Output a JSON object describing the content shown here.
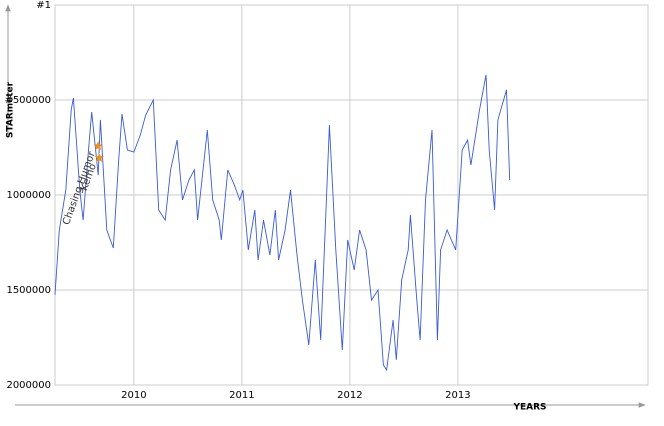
{
  "chart_data": {
    "type": "line",
    "y_label": "STARmeter",
    "x_label": "YEARS",
    "xlim": [
      2009.27,
      2014.76
    ],
    "xticks": [
      2010,
      2011,
      2012,
      2013
    ],
    "ylim": [
      2000000,
      1
    ],
    "yticks": [
      {
        "value": 1,
        "label": "#1"
      },
      {
        "value": 500000,
        "label": "#500000"
      },
      1000000,
      1500000,
      2000000
    ],
    "grid": true,
    "series": [
      {
        "color": "#3a5ad6",
        "x": [
          2009.27,
          2009.31,
          2009.37,
          2009.42,
          2009.44,
          2009.5,
          2009.53,
          2009.58,
          2009.61,
          2009.67,
          2009.69,
          2009.75,
          2009.81,
          2009.86,
          2009.89,
          2009.94,
          2010,
          2010.06,
          2010.11,
          2010.18,
          2010.23,
          2010.29,
          2010.34,
          2010.4,
          2010.45,
          2010.51,
          2010.56,
          2010.59,
          2010.65,
          2010.68,
          2010.73,
          2010.79,
          2010.81,
          2010.87,
          2010.93,
          2010.98,
          2011.01,
          2011.06,
          2011.12,
          2011.15,
          2011.2,
          2011.26,
          2011.31,
          2011.34,
          2011.4,
          2011.45,
          2011.51,
          2011.56,
          2011.62,
          2011.68,
          2011.73,
          2011.79,
          2011.81,
          2011.87,
          2011.93,
          2011.98,
          2012.04,
          2012.09,
          2012.15,
          2012.2,
          2012.26,
          2012.31,
          2012.34,
          2012.4,
          2012.43,
          2012.48,
          2012.54,
          2012.56,
          2012.62,
          2012.65,
          2012.7,
          2012.76,
          2012.81,
          2012.84,
          2012.9,
          2012.98,
          2013.04,
          2013.09,
          2013.12,
          2013.2,
          2013.26,
          2013.29,
          2013.34,
          2013.37,
          2013.45,
          2013.48
        ],
        "values": [
          1526000,
          1184000,
          974000,
          553000,
          489000,
          974000,
          1132000,
          763000,
          563000,
          895000,
          605000,
          1184000,
          1279000,
          816000,
          574000,
          763000,
          774000,
          684000,
          579000,
          500000,
          1079000,
          1132000,
          868000,
          711000,
          1026000,
          921000,
          868000,
          1132000,
          816000,
          658000,
          1026000,
          1132000,
          1237000,
          868000,
          947000,
          1026000,
          974000,
          1289000,
          1079000,
          1342000,
          1132000,
          1316000,
          1079000,
          1342000,
          1184000,
          974000,
          1316000,
          1553000,
          1789000,
          1342000,
          1763000,
          921000,
          632000,
          1289000,
          1816000,
          1237000,
          1395000,
          1184000,
          1289000,
          1553000,
          1500000,
          1895000,
          1921000,
          1658000,
          1868000,
          1447000,
          1289000,
          1105000,
          1553000,
          1763000,
          1026000,
          658000,
          1763000,
          1289000,
          1184000,
          1289000,
          763000,
          711000,
          842000,
          553000,
          368000,
          763000,
          1079000,
          605000,
          447000,
          921000
        ]
      }
    ],
    "annotations": [
      {
        "label": "Chasing Humor",
        "x": 2009.67,
        "y": 742000,
        "color": "#e8921c"
      },
      {
        "label": "Kemo",
        "x": 2009.68,
        "y": 805000,
        "color": "#e8921c"
      }
    ]
  }
}
